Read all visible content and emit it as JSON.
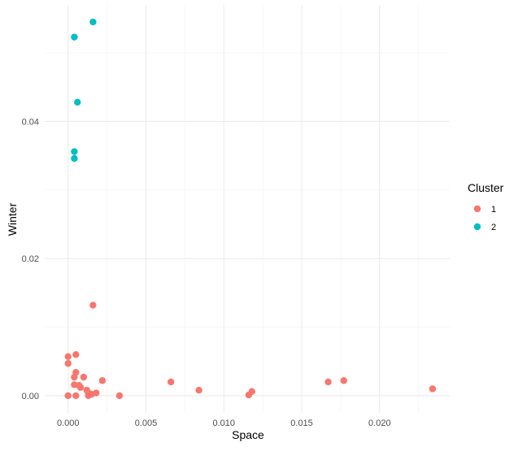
{
  "chart_data": {
    "type": "scatter",
    "title": "",
    "xlabel": "Space",
    "ylabel": "Winter",
    "xlim": [
      -0.0015,
      0.0245
    ],
    "ylim": [
      -0.0025,
      0.057
    ],
    "x_ticks": [
      0.0,
      0.005,
      0.01,
      0.015,
      0.02
    ],
    "x_tick_labels": [
      "0.000",
      "0.005",
      "0.010",
      "0.015",
      "0.020"
    ],
    "y_ticks": [
      0.0,
      0.02,
      0.04
    ],
    "y_tick_labels": [
      "0.00",
      "0.02",
      "0.04"
    ],
    "grid": true,
    "theme": "minimal",
    "legend": {
      "title": "Cluster",
      "position": "right"
    },
    "series": [
      {
        "name": "1",
        "color": "#F8766D",
        "points": [
          [
            0.0,
            0.0057
          ],
          [
            0.0,
            0.0047
          ],
          [
            0.0,
            0.0
          ],
          [
            0.0004,
            0.0016
          ],
          [
            0.0004,
            0.0027
          ],
          [
            0.0005,
            0.006
          ],
          [
            0.0005,
            0.0034
          ],
          [
            0.0005,
            0.0
          ],
          [
            0.0007,
            0.0015
          ],
          [
            0.0008,
            0.0012
          ],
          [
            0.001,
            0.0027
          ],
          [
            0.0012,
            0.0008
          ],
          [
            0.0013,
            0.0
          ],
          [
            0.0013,
            0.0004
          ],
          [
            0.0015,
            0.0002
          ],
          [
            0.0016,
            0.0132
          ],
          [
            0.0018,
            0.0004
          ],
          [
            0.0022,
            0.0022
          ],
          [
            0.0033,
            0.0
          ],
          [
            0.0066,
            0.002
          ],
          [
            0.0084,
            0.0008
          ],
          [
            0.0116,
            0.0001
          ],
          [
            0.0118,
            0.0006
          ],
          [
            0.0167,
            0.002
          ],
          [
            0.0177,
            0.0022
          ],
          [
            0.0234,
            0.001
          ]
        ]
      },
      {
        "name": "2",
        "color": "#00BFC4",
        "points": [
          [
            0.0016,
            0.0545
          ],
          [
            0.0004,
            0.0523
          ],
          [
            0.0006,
            0.0428
          ],
          [
            0.0004,
            0.0356
          ],
          [
            0.0004,
            0.0346
          ]
        ]
      }
    ]
  }
}
